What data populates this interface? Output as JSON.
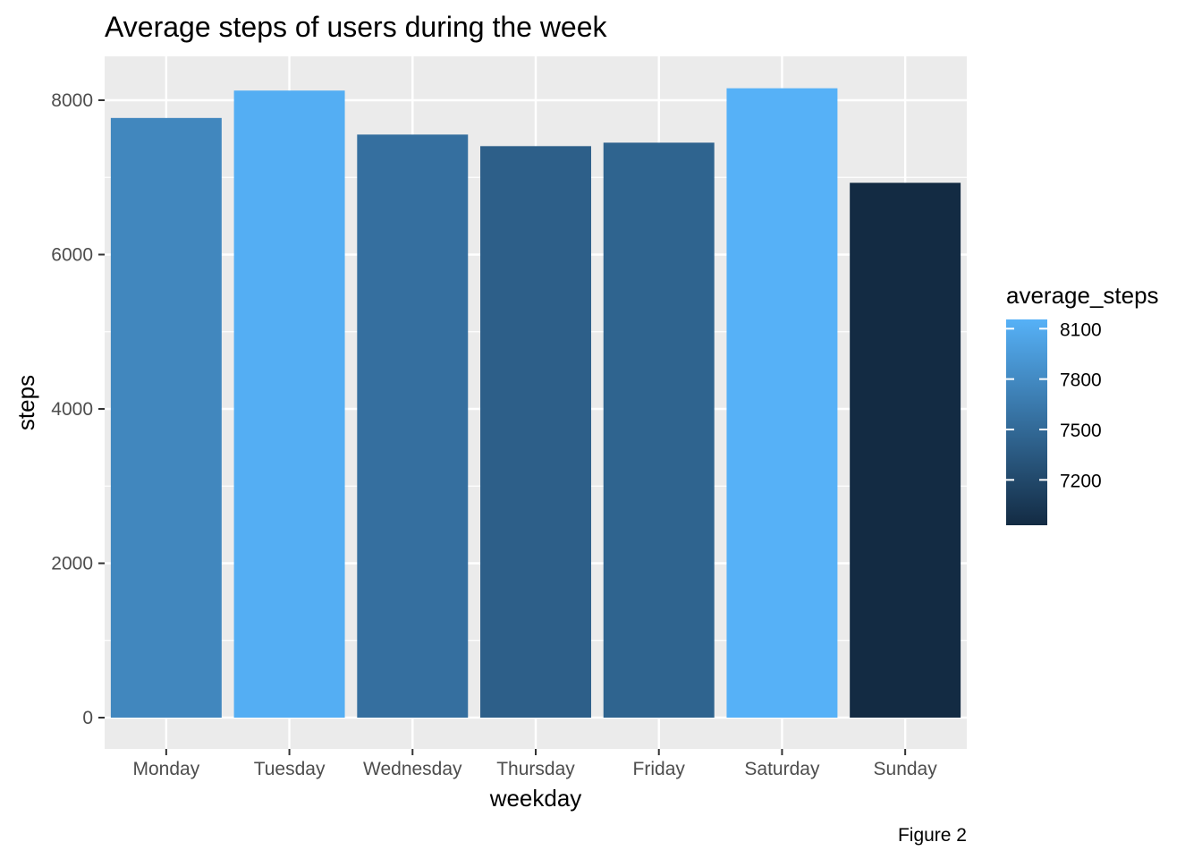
{
  "chart_data": {
    "type": "bar",
    "title": "Average steps of users during the week",
    "xlabel": "weekday",
    "ylabel": "steps",
    "categories": [
      "Monday",
      "Tuesday",
      "Wednesday",
      "Thursday",
      "Friday",
      "Saturday",
      "Sunday"
    ],
    "values": [
      7770,
      8125,
      7555,
      7405,
      7450,
      8155,
      6930
    ],
    "ylim": [
      0,
      8500
    ],
    "yticks": [
      0,
      2000,
      4000,
      6000,
      8000
    ],
    "grid": true,
    "legend": {
      "title": "average_steps",
      "placement": "right",
      "type": "colorbar",
      "ticks": [
        8100,
        7800,
        7500,
        7200
      ],
      "range": [
        6930,
        8155
      ],
      "low_color": "#132B43",
      "high_color": "#56B1F7"
    },
    "caption": "Figure 2"
  }
}
